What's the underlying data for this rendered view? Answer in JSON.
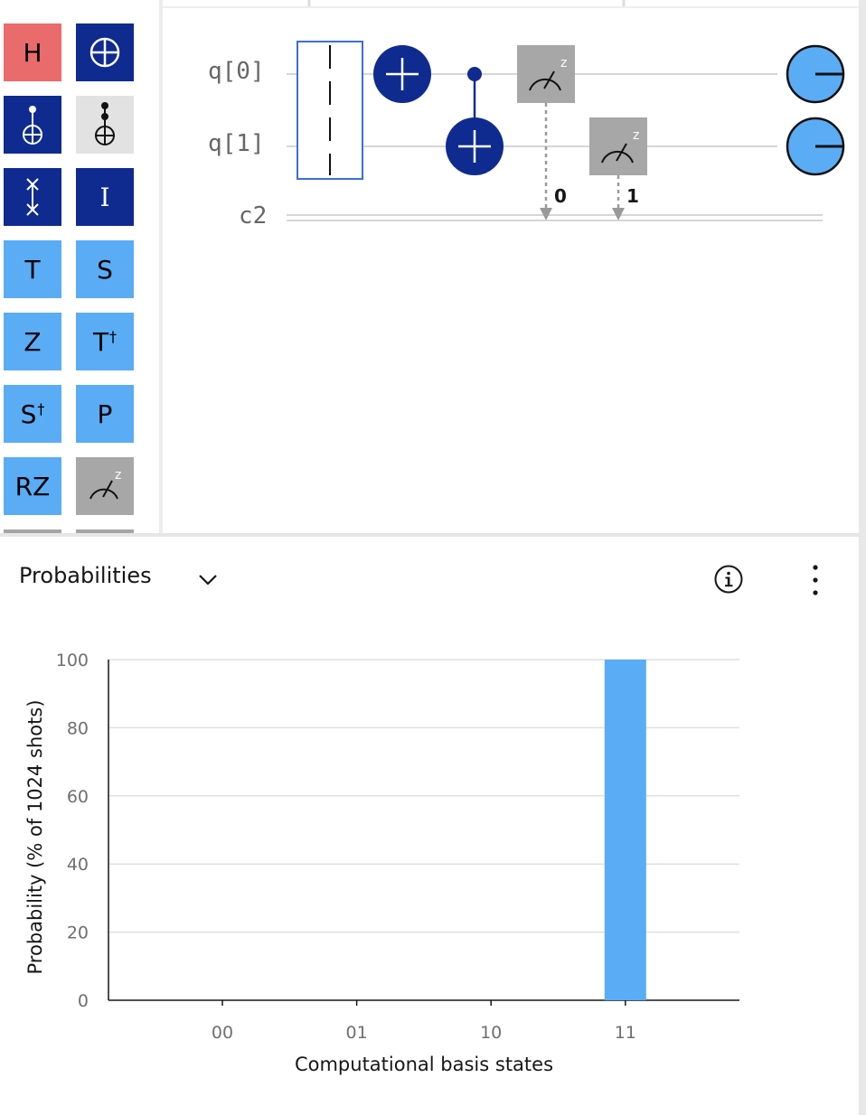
{
  "palette": {
    "gates": [
      {
        "label": "H",
        "icon": null,
        "color": "red",
        "name": "gate-h"
      },
      {
        "label": "",
        "icon": "oplus-icon",
        "color": "navy",
        "name": "gate-not"
      },
      {
        "label": "",
        "icon": "cnot-icon",
        "color": "navy",
        "name": "gate-cnot"
      },
      {
        "label": "",
        "icon": "toffoli-icon",
        "color": "light",
        "name": "gate-toffoli"
      },
      {
        "label": "",
        "icon": "swap-icon",
        "color": "navy",
        "name": "gate-swap"
      },
      {
        "label": "I",
        "icon": null,
        "color": "navy",
        "name": "gate-i"
      },
      {
        "label": "T",
        "icon": null,
        "color": "blue",
        "name": "gate-t"
      },
      {
        "label": "S",
        "icon": null,
        "color": "blue",
        "name": "gate-s"
      },
      {
        "label": "Z",
        "icon": null,
        "color": "blue",
        "name": "gate-z"
      },
      {
        "label": "T",
        "sup": "†",
        "icon": null,
        "color": "blue",
        "name": "gate-tdg"
      },
      {
        "label": "S",
        "sup": "†",
        "icon": null,
        "color": "blue",
        "name": "gate-sdg"
      },
      {
        "label": "P",
        "icon": null,
        "color": "blue",
        "name": "gate-p"
      },
      {
        "label": "RZ",
        "icon": null,
        "color": "blue",
        "name": "gate-rz"
      },
      {
        "label": "",
        "icon": "measure-icon",
        "color": "grey",
        "name": "gate-measure"
      }
    ]
  },
  "circuit": {
    "qubits": [
      "q[0]",
      "q[1]"
    ],
    "classical": "c2",
    "measure_bits": [
      "0",
      "1"
    ],
    "measure_basis": "z"
  },
  "probabilities": {
    "title": "Probabilities",
    "chart_data": {
      "type": "bar",
      "categories": [
        "00",
        "01",
        "10",
        "11"
      ],
      "values": [
        0,
        0,
        0,
        100
      ],
      "xlabel": "Computational basis states",
      "ylabel": "Probability (% of 1024 shots)",
      "ylim": [
        0,
        100
      ],
      "yticks": [
        "0",
        "20",
        "40",
        "60",
        "80",
        "100"
      ],
      "grid": true,
      "bar_color": "#5aacf5"
    }
  },
  "colors": {
    "navy": "#0f2b8f",
    "blue": "#5aacf5",
    "red": "#ea6b6b",
    "grey": "#a7a7a7"
  }
}
